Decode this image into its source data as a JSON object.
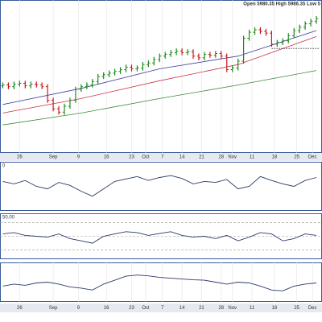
{
  "chart_data": [
    {
      "type": "ohlc",
      "header": "Open 5980.35  High 5986.35  Low 5",
      "xlim": [
        -0.5,
        57
      ],
      "ylim": [
        20,
        200
      ],
      "xticks": [
        {
          "value": 3,
          "label": "26"
        },
        {
          "value": 9,
          "label": "Sep"
        },
        {
          "value": 13.5,
          "label": "9"
        },
        {
          "value": 18.5,
          "label": "16"
        },
        {
          "value": 23,
          "label": "23"
        },
        {
          "value": 25.5,
          "label": "Oct"
        },
        {
          "value": 28.5,
          "label": "7"
        },
        {
          "value": 32,
          "label": "14"
        },
        {
          "value": 35.5,
          "label": "21"
        },
        {
          "value": 39,
          "label": "28"
        },
        {
          "value": 41,
          "label": "Nov"
        },
        {
          "value": 44.5,
          "label": "11"
        },
        {
          "value": 48.5,
          "label": "18"
        },
        {
          "value": 52.5,
          "label": "25"
        },
        {
          "value": 55.3,
          "label": "Dec"
        }
      ],
      "up_color": "#1f8a1f",
      "down_color": "#c81818",
      "open": [
        99,
        100,
        98,
        101,
        102,
        99,
        101,
        100,
        98,
        82,
        72,
        68,
        75,
        82,
        95,
        98,
        100,
        104,
        110,
        112,
        114,
        116,
        118,
        121,
        119,
        120,
        124,
        126,
        130,
        134,
        136,
        138,
        140,
        138,
        139,
        134,
        132,
        136,
        135,
        137,
        134,
        118,
        120,
        128,
        155,
        162,
        165,
        163,
        161,
        148,
        150,
        152,
        158,
        164,
        168,
        172,
        175
      ],
      "high": [
        103,
        103,
        104,
        105,
        105,
        104,
        104,
        103,
        101,
        85,
        75,
        78,
        85,
        98,
        101,
        103,
        107,
        113,
        115,
        117,
        119,
        121,
        124,
        124,
        123,
        127,
        129,
        133,
        137,
        139,
        141,
        143,
        143,
        142,
        142,
        137,
        139,
        139,
        140,
        140,
        137,
        123,
        131,
        158,
        165,
        168,
        168,
        166,
        164,
        153,
        155,
        161,
        167,
        171,
        175,
        178,
        181
      ],
      "low": [
        96,
        95,
        95,
        98,
        96,
        96,
        97,
        95,
        79,
        69,
        65,
        65,
        72,
        79,
        92,
        95,
        97,
        101,
        107,
        109,
        111,
        113,
        115,
        116,
        116,
        117,
        121,
        123,
        127,
        131,
        133,
        135,
        135,
        135,
        131,
        129,
        129,
        132,
        132,
        131,
        115,
        115,
        117,
        125,
        152,
        159,
        160,
        158,
        145,
        145,
        147,
        149,
        155,
        161,
        165,
        169,
        172
      ],
      "close": [
        100,
        98,
        101,
        102,
        99,
        101,
        100,
        98,
        82,
        72,
        68,
        75,
        82,
        95,
        98,
        100,
        104,
        110,
        112,
        114,
        116,
        118,
        121,
        119,
        120,
        124,
        126,
        130,
        134,
        136,
        138,
        140,
        138,
        139,
        134,
        132,
        136,
        135,
        137,
        134,
        118,
        120,
        128,
        155,
        162,
        165,
        163,
        161,
        148,
        150,
        152,
        158,
        164,
        168,
        172,
        175,
        178
      ],
      "overlays": [
        {
          "color": "#3b3b9c",
          "x": [
            0,
            14,
            28,
            42,
            56
          ],
          "values": [
            77,
            96,
            119,
            134,
            164
          ]
        },
        {
          "color": "#cc3344",
          "x": [
            0,
            14,
            28,
            42,
            56
          ],
          "values": [
            67,
            84,
            105,
            124,
            157
          ]
        },
        {
          "color": "#3a8a3a",
          "x": [
            0,
            14,
            28,
            42,
            56
          ],
          "values": [
            53,
            67,
            84,
            100,
            117
          ]
        }
      ],
      "level": {
        "value": 143,
        "x": [
          48,
          56.5
        ]
      }
    },
    {
      "type": "line",
      "label": "0",
      "color": "#2a3a6a",
      "xlim": [
        -0.5,
        57
      ],
      "ylim": [
        0,
        100
      ],
      "x": [
        0,
        2,
        4,
        6,
        8,
        10,
        12,
        14,
        16,
        18,
        20,
        22,
        24,
        26,
        28,
        30,
        32,
        34,
        36,
        38,
        40,
        42,
        44,
        46,
        48,
        50,
        52,
        54,
        56
      ],
      "values": [
        60,
        55,
        62,
        50,
        45,
        58,
        52,
        40,
        30,
        45,
        60,
        65,
        70,
        62,
        68,
        72,
        66,
        55,
        60,
        58,
        64,
        45,
        50,
        70,
        62,
        55,
        50,
        62,
        68
      ]
    },
    {
      "type": "line",
      "label": "50.00",
      "color": "#2a3a6a",
      "xlim": [
        -0.5,
        57
      ],
      "ylim": [
        0,
        100
      ],
      "yticks": [
        20,
        50,
        80
      ],
      "x": [
        0,
        2,
        4,
        6,
        8,
        10,
        12,
        14,
        16,
        18,
        20,
        22,
        24,
        26,
        28,
        30,
        32,
        34,
        36,
        38,
        40,
        42,
        44,
        46,
        48,
        50,
        52,
        54,
        56
      ],
      "values": [
        55,
        58,
        52,
        50,
        48,
        55,
        45,
        40,
        35,
        50,
        55,
        60,
        58,
        52,
        56,
        60,
        52,
        48,
        50,
        45,
        52,
        40,
        48,
        58,
        55,
        40,
        45,
        55,
        52
      ]
    },
    {
      "type": "line",
      "color": "#2a3a6a",
      "xlim": [
        -0.5,
        57
      ],
      "ylim": [
        0,
        100
      ],
      "x": [
        0,
        2,
        4,
        6,
        8,
        10,
        12,
        14,
        16,
        18,
        20,
        22,
        24,
        26,
        28,
        30,
        32,
        34,
        36,
        38,
        40,
        42,
        44,
        46,
        48,
        50,
        52,
        54,
        56
      ],
      "values": [
        40,
        45,
        42,
        48,
        50,
        45,
        38,
        35,
        30,
        45,
        55,
        65,
        68,
        66,
        62,
        60,
        58,
        56,
        55,
        50,
        45,
        50,
        48,
        40,
        30,
        28,
        40,
        45,
        48
      ],
      "xticks": [
        {
          "value": 3,
          "label": "26"
        },
        {
          "value": 9,
          "label": "Sep"
        },
        {
          "value": 13.5,
          "label": "9"
        },
        {
          "value": 18.5,
          "label": "16"
        },
        {
          "value": 23,
          "label": "23"
        },
        {
          "value": 25.5,
          "label": "Oct"
        },
        {
          "value": 28.5,
          "label": "7"
        },
        {
          "value": 32,
          "label": "14"
        },
        {
          "value": 35.5,
          "label": "21"
        },
        {
          "value": 39,
          "label": "28"
        },
        {
          "value": 41,
          "label": "Nov"
        },
        {
          "value": 44.5,
          "label": "11"
        },
        {
          "value": 48.5,
          "label": "18"
        },
        {
          "value": 52.5,
          "label": "25"
        },
        {
          "value": 55.3,
          "label": "Dec"
        }
      ]
    }
  ]
}
